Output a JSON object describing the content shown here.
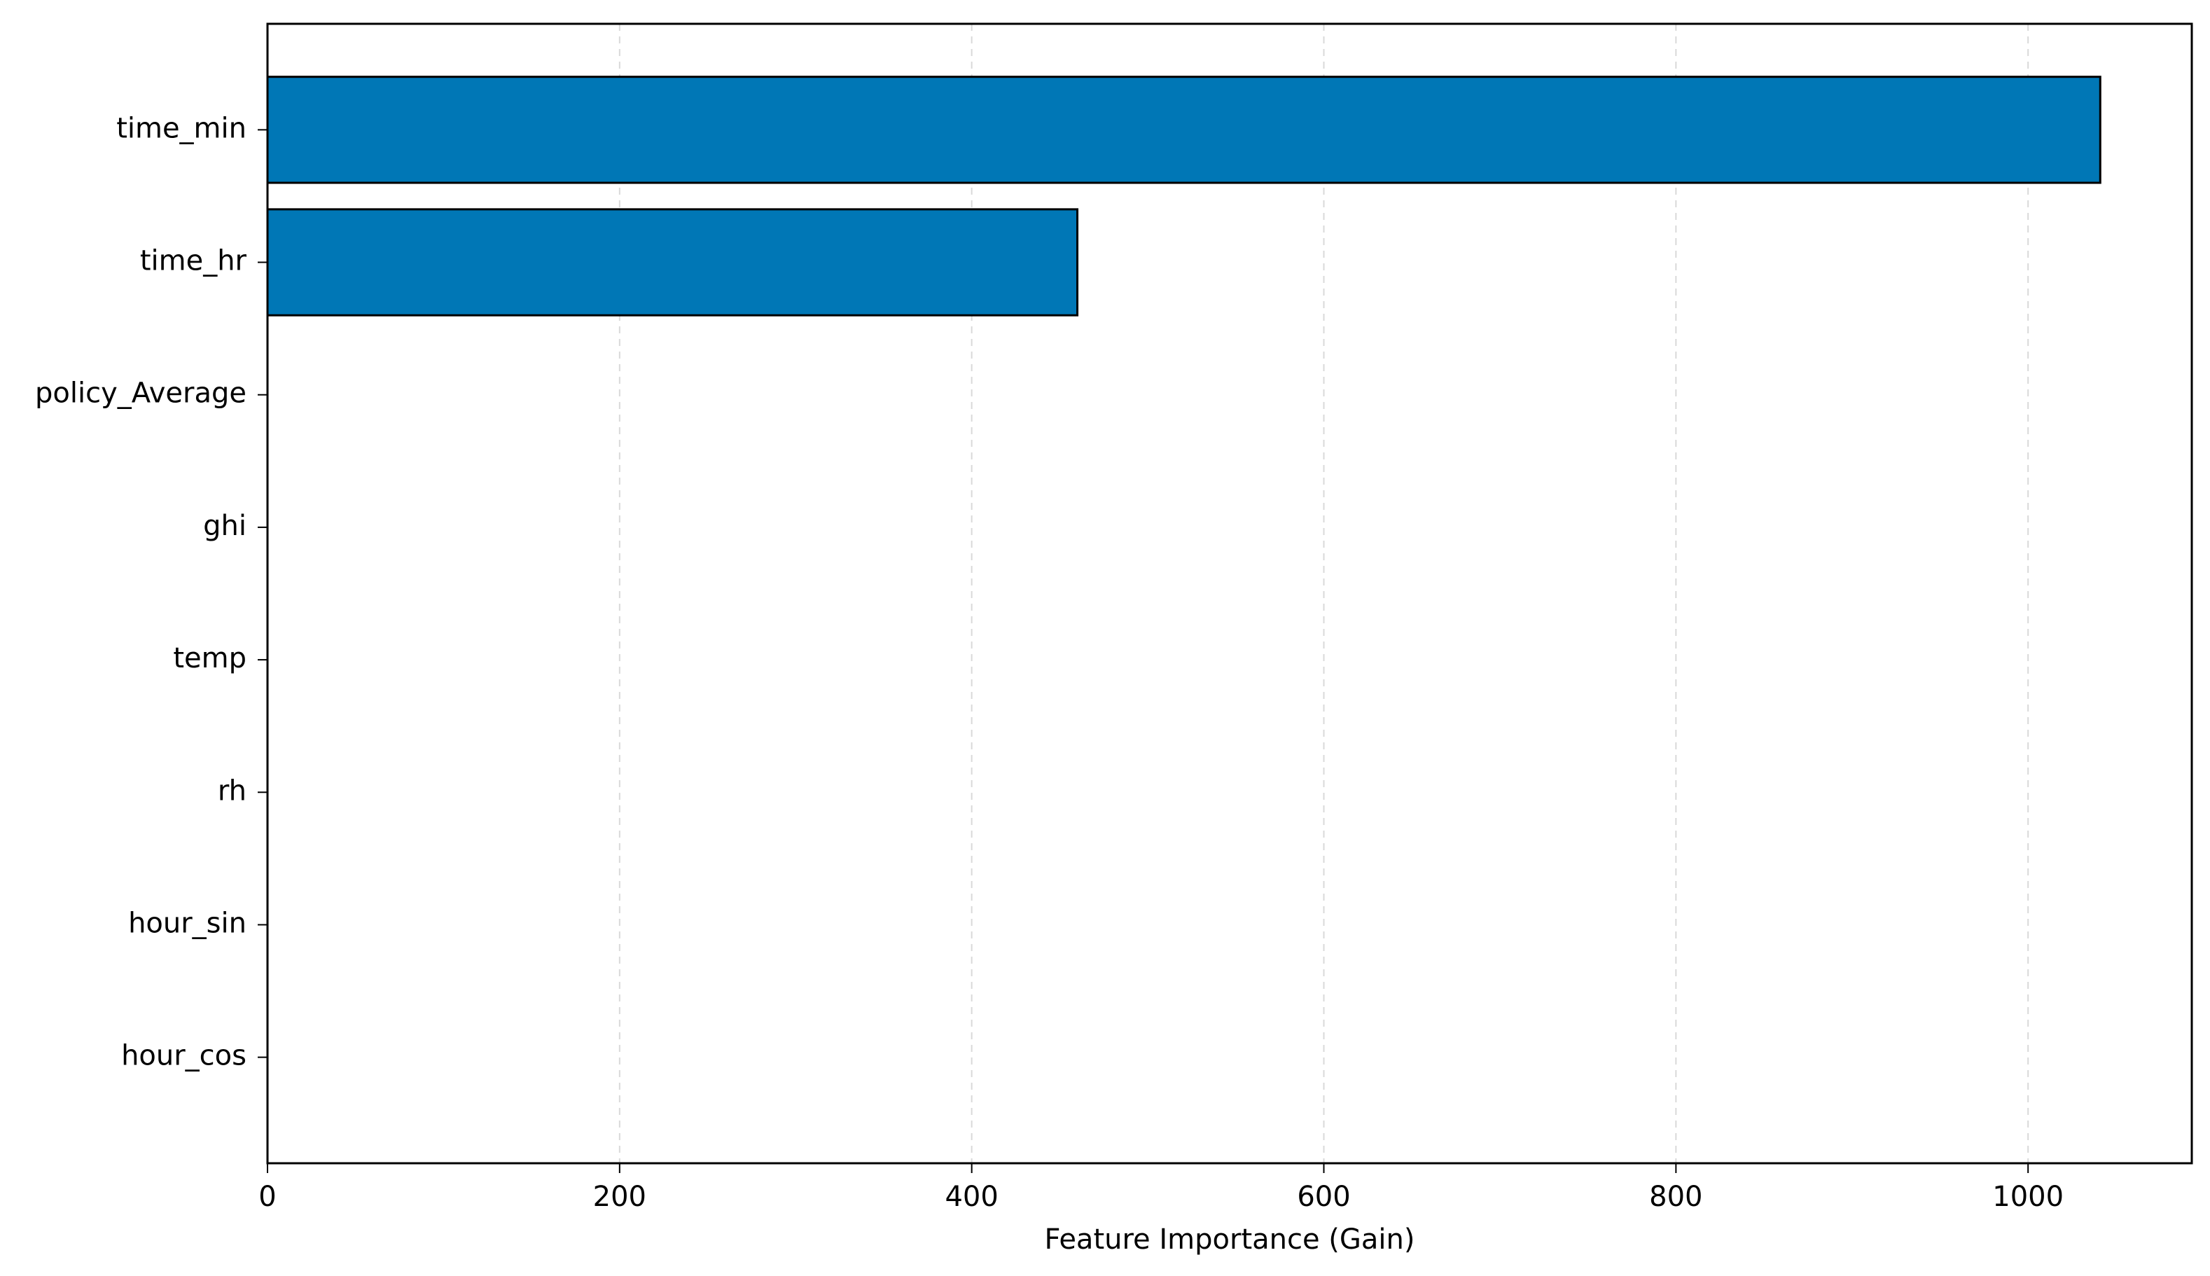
{
  "chart_data": {
    "type": "barh",
    "x_label": "Feature Importance (Gain)",
    "categories": [
      "time_min",
      "time_hr",
      "policy_Average",
      "ghi",
      "temp",
      "rh",
      "hour_sin",
      "hour_cos"
    ],
    "values": [
      1041,
      460,
      0,
      0,
      0,
      0,
      0,
      0
    ],
    "color": "#0077b6",
    "edgecolor": "#000000",
    "xlim": [
      0,
      1093
    ],
    "xticks": [
      0,
      200,
      400,
      600,
      800,
      1000
    ],
    "grid": true
  }
}
